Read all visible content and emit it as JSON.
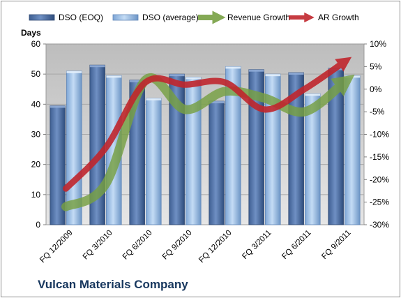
{
  "company": "Vulcan Materials Company",
  "chart_data": {
    "type": "bar+line",
    "categories": [
      "FQ 12/2009",
      "FQ 3/2010",
      "FQ 6/2010",
      "FQ 9/2010",
      "FQ 12/2010",
      "FQ 3/2011",
      "FQ 6/2011",
      "FQ 9/2011"
    ],
    "series": [
      {
        "name": "DSO (EOQ)",
        "kind": "bar",
        "axis": "left",
        "color": "#4f6fa3",
        "values": [
          39.5,
          53,
          48,
          50,
          41,
          51.5,
          50.5,
          52
        ]
      },
      {
        "name": "DSO (average)",
        "kind": "bar",
        "axis": "left",
        "color": "#9ec0e8",
        "values": [
          51,
          49.5,
          42,
          49,
          52.5,
          50,
          43.5,
          49.5
        ]
      },
      {
        "name": "Revenue Growth",
        "kind": "line",
        "axis": "right",
        "color": "#77a043",
        "values": [
          -26,
          -21,
          2,
          -4.5,
          -0.5,
          -2,
          -5,
          1.5
        ]
      },
      {
        "name": "AR Growth",
        "kind": "line",
        "axis": "right",
        "color": "#c0262d",
        "values": [
          -22,
          -13,
          1.5,
          1,
          1.5,
          -4.5,
          0,
          6
        ]
      }
    ],
    "ylabel": "Days",
    "ylim": [
      0,
      60
    ],
    "yticks": [
      "0",
      "10",
      "20",
      "30",
      "40",
      "50",
      "60"
    ],
    "y2lim": [
      -30,
      10
    ],
    "y2ticks": [
      "-30%",
      "-25%",
      "-20%",
      "-15%",
      "-10%",
      "-5%",
      "0%",
      "5%",
      "10%"
    ],
    "plot_background": "#c9c9c9",
    "grid": true,
    "legend": "top"
  }
}
